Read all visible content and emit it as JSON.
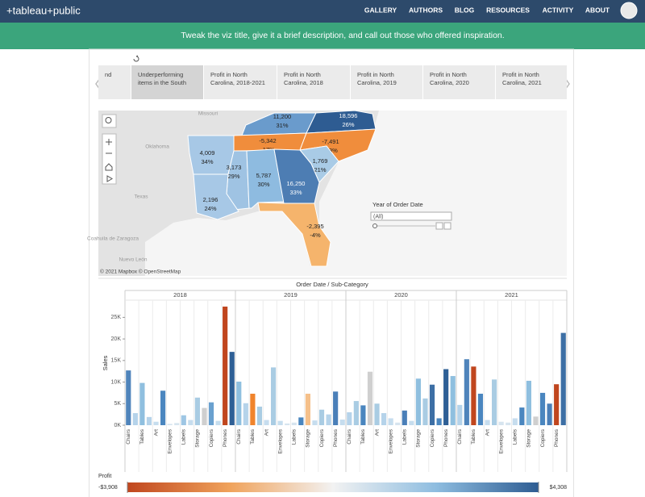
{
  "nav": {
    "logo": "+tableau+public",
    "items": [
      "GALLERY",
      "AUTHORS",
      "BLOG",
      "RESOURCES",
      "ACTIVITY",
      "ABOUT"
    ]
  },
  "banner": {
    "text": "Tweak the viz title, give it a brief description, and call out those who offered inspiration."
  },
  "tabs": [
    "nd",
    "Underperforming items in the South",
    "Profit in North Carolina, 2018-2021",
    "Profit in North Carolina, 2018",
    "Profit in North Carolina, 2019",
    "Profit in North Carolina, 2020",
    "Profit in North Carolina, 2021"
  ],
  "map": {
    "states": [
      {
        "value": "11,200",
        "share": "31%",
        "color": "#6a9bcc"
      },
      {
        "value": "18,596",
        "share": "26%",
        "color": "#2e5c92"
      },
      {
        "value": "-5,342",
        "share": "-17%",
        "color": "#f08d3c"
      },
      {
        "value": "-7,491",
        "share": "-13%",
        "color": "#f08d3c"
      },
      {
        "value": "4,009",
        "share": "34%",
        "color": "#a7c8e6"
      },
      {
        "value": "3,173",
        "share": "29%",
        "color": "#9fc3e3"
      },
      {
        "value": "5,787",
        "share": "30%",
        "color": "#8ebbe0"
      },
      {
        "value": "1,769",
        "share": "21%",
        "color": "#a9cbe6"
      },
      {
        "value": "16,250",
        "share": "33%",
        "color": "#4d7db3"
      },
      {
        "value": "2,196",
        "share": "24%",
        "color": "#a7c8e6"
      },
      {
        "value": "-2,395",
        "share": "-4%",
        "color": "#f5b46c"
      }
    ],
    "places": [
      "Missouri",
      "Oklahoma",
      "Texas",
      "Coahuila de Zaragoza",
      "Nuevo León"
    ],
    "attribution": "© 2021 Mapbox © OpenStreetMap",
    "filter": {
      "title": "Year of Order Date",
      "value": "(All)"
    }
  },
  "chart_data": {
    "type": "bar",
    "title": "Order Date / Sub-Category",
    "y_label": "Sales",
    "ylim": [
      0,
      29000
    ],
    "yticks": [
      {
        "value": 0,
        "label": "0K"
      },
      {
        "value": 5000,
        "label": "5K"
      },
      {
        "value": 10000,
        "label": "10K"
      },
      {
        "value": 15000,
        "label": "15K"
      },
      {
        "value": 20000,
        "label": "20K"
      },
      {
        "value": 25000,
        "label": "25K"
      }
    ],
    "groups": [
      {
        "name": "2018",
        "categories": [
          "Chairs",
          null,
          "Tables",
          null,
          "Art",
          null,
          "Envelopes",
          null,
          "Labels",
          null,
          "Storage",
          null,
          "Copiers",
          null,
          "Phones",
          null
        ],
        "values": [
          12700,
          2800,
          9800,
          1900,
          800,
          8000,
          300,
          500,
          2300,
          1200,
          6400,
          4000,
          5300,
          1000,
          27500,
          17000
        ],
        "colors": [
          "#4f84bb",
          "#b5d3ea",
          "#8fbfdf",
          "#b5d3ea",
          "#c6ddee",
          "#4a86bf",
          "#d6e4ef",
          "#d6e4ef",
          "#9ec6e4",
          "#c6ddee",
          "#a9cce3",
          "#cfcfcf",
          "#6aa1cf",
          "#c6ddee",
          "#c0461e",
          "#2e5f95"
        ]
      },
      {
        "name": "2019",
        "categories": [
          "Chairs",
          null,
          "Tables",
          null,
          "Art",
          null,
          "Envelopes",
          null,
          "Labels",
          null,
          "Storage",
          null,
          "Copiers",
          null,
          "Phones",
          null
        ],
        "values": [
          10100,
          5100,
          7300,
          4300,
          1200,
          13400,
          1000,
          400,
          600,
          1800,
          7300,
          1100,
          3600,
          2500,
          7800,
          1300
        ],
        "colors": [
          "#8fbfdf",
          "#b5d3ea",
          "#f0842c",
          "#a9cce3",
          "#c6ddee",
          "#a9cce3",
          "#c6ddee",
          "#d6e4ef",
          "#d6e4ef",
          "#4a86bf",
          "#f5c08a",
          "#c6ddee",
          "#a9cce3",
          "#b5d3ea",
          "#4a7fb8",
          "#c6ddee"
        ]
      },
      {
        "name": "2020",
        "categories": [
          "Chairs",
          null,
          "Tables",
          null,
          "Art",
          null,
          "Envelopes",
          null,
          "Labels",
          null,
          "Storage",
          null,
          "Copiers",
          null,
          "Phones",
          null
        ],
        "values": [
          3000,
          5600,
          4600,
          12400,
          5000,
          2800,
          1600,
          600,
          3400,
          1000,
          10800,
          6200,
          9400,
          1600,
          13000,
          11400
        ],
        "colors": [
          "#b5d3ea",
          "#a9cce3",
          "#4a86bf",
          "#cfcfcf",
          "#a9cce3",
          "#b5d3ea",
          "#c6ddee",
          "#d6e4ef",
          "#4a7fb8",
          "#c6ddee",
          "#8fbfdf",
          "#a9cce3",
          "#3d6fa5",
          "#4a86bf",
          "#2e5f95",
          "#8fbfdf"
        ]
      },
      {
        "name": "2021",
        "categories": [
          "Chairs",
          null,
          "Tables",
          null,
          "Art",
          null,
          "Envelopes",
          null,
          "Labels",
          null,
          "Storage",
          null,
          "Copiers",
          null,
          "Phones",
          null
        ],
        "values": [
          4700,
          15300,
          13600,
          7300,
          1200,
          10600,
          800,
          600,
          1600,
          4100,
          10300,
          2000,
          7500,
          5000,
          9500,
          21400
        ],
        "colors": [
          "#b5d3ea",
          "#4f84bb",
          "#c0461e",
          "#4a86bf",
          "#c6ddee",
          "#a9cce3",
          "#d6e4ef",
          "#d6e4ef",
          "#c6ddee",
          "#4a86bf",
          "#8fbfdf",
          "#cfcfcf",
          "#4a86bf",
          "#4a7fb8",
          "#c0461e",
          "#3d6fa5"
        ]
      }
    ],
    "color_legend": {
      "title": "Profit",
      "min": {
        "value": -3908,
        "label": "-$3,908"
      },
      "max": {
        "value": 4308,
        "label": "$4,308"
      },
      "colors": [
        "#c0461e",
        "#f0a35c",
        "#f2f2f2",
        "#8ebde0",
        "#2e5c92"
      ]
    }
  }
}
